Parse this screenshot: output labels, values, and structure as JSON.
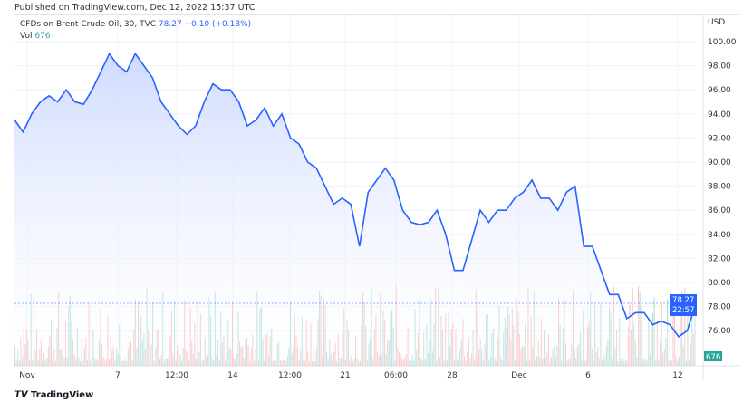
{
  "header": {
    "published": "Published on TradingView.com, Dec 12, 2022 15:37 UTC"
  },
  "legend": {
    "symbol": "CFDs on Brent Crude Oil, 30, TVC",
    "price": "78.27",
    "change": "+0.10 (+0.13%)",
    "vol_label": "Vol",
    "vol_value": "676"
  },
  "footer": {
    "brand": "TradingView"
  },
  "chart_data": {
    "type": "area",
    "title": "CFDs on Brent Crude Oil, 30, TVC",
    "ylabel": "USD",
    "ylim": [
      74.6,
      101
    ],
    "yticks": [
      "100.00",
      "98.00",
      "96.00",
      "94.00",
      "92.00",
      "90.00",
      "88.00",
      "86.00",
      "84.00",
      "82.00",
      "80.00",
      "78.00",
      "76.00"
    ],
    "xticks": [
      "Nov",
      "7",
      "12:00",
      "14",
      "12:00",
      "21",
      "06:00",
      "28",
      "Dec",
      "6",
      "12"
    ],
    "x_range": [
      "2022-11-01",
      "2022-12-12"
    ],
    "price_series": [
      93.5,
      92.5,
      94,
      95,
      95.5,
      95,
      96,
      95,
      94.8,
      96,
      97.5,
      99,
      98,
      97.5,
      99,
      98,
      97,
      95,
      94,
      93,
      92.3,
      93,
      95,
      96.5,
      96,
      96,
      95,
      93,
      93.5,
      94.5,
      93,
      94,
      92,
      91.5,
      90,
      89.5,
      88,
      86.5,
      87,
      86.5,
      83,
      87.5,
      88.5,
      89.5,
      88.5,
      86,
      85,
      84.8,
      85,
      86,
      84,
      81,
      81,
      83.5,
      86,
      85,
      86,
      86,
      87,
      87.5,
      88.5,
      87,
      87,
      86,
      87.5,
      88,
      83,
      83,
      81,
      79,
      79,
      77,
      77.5,
      77.5,
      76.5,
      76.8,
      76.5,
      75.5,
      76,
      78.27
    ],
    "last_price": "78.27",
    "countdown": "22:57",
    "last_volume": "676",
    "colors": {
      "line": "#2962ff",
      "area_top": "#c9d6ff",
      "vol_up": "#26a69a",
      "vol_down": "#ef5350",
      "label": "#2962ff",
      "vol_label": "#26a69a"
    }
  }
}
